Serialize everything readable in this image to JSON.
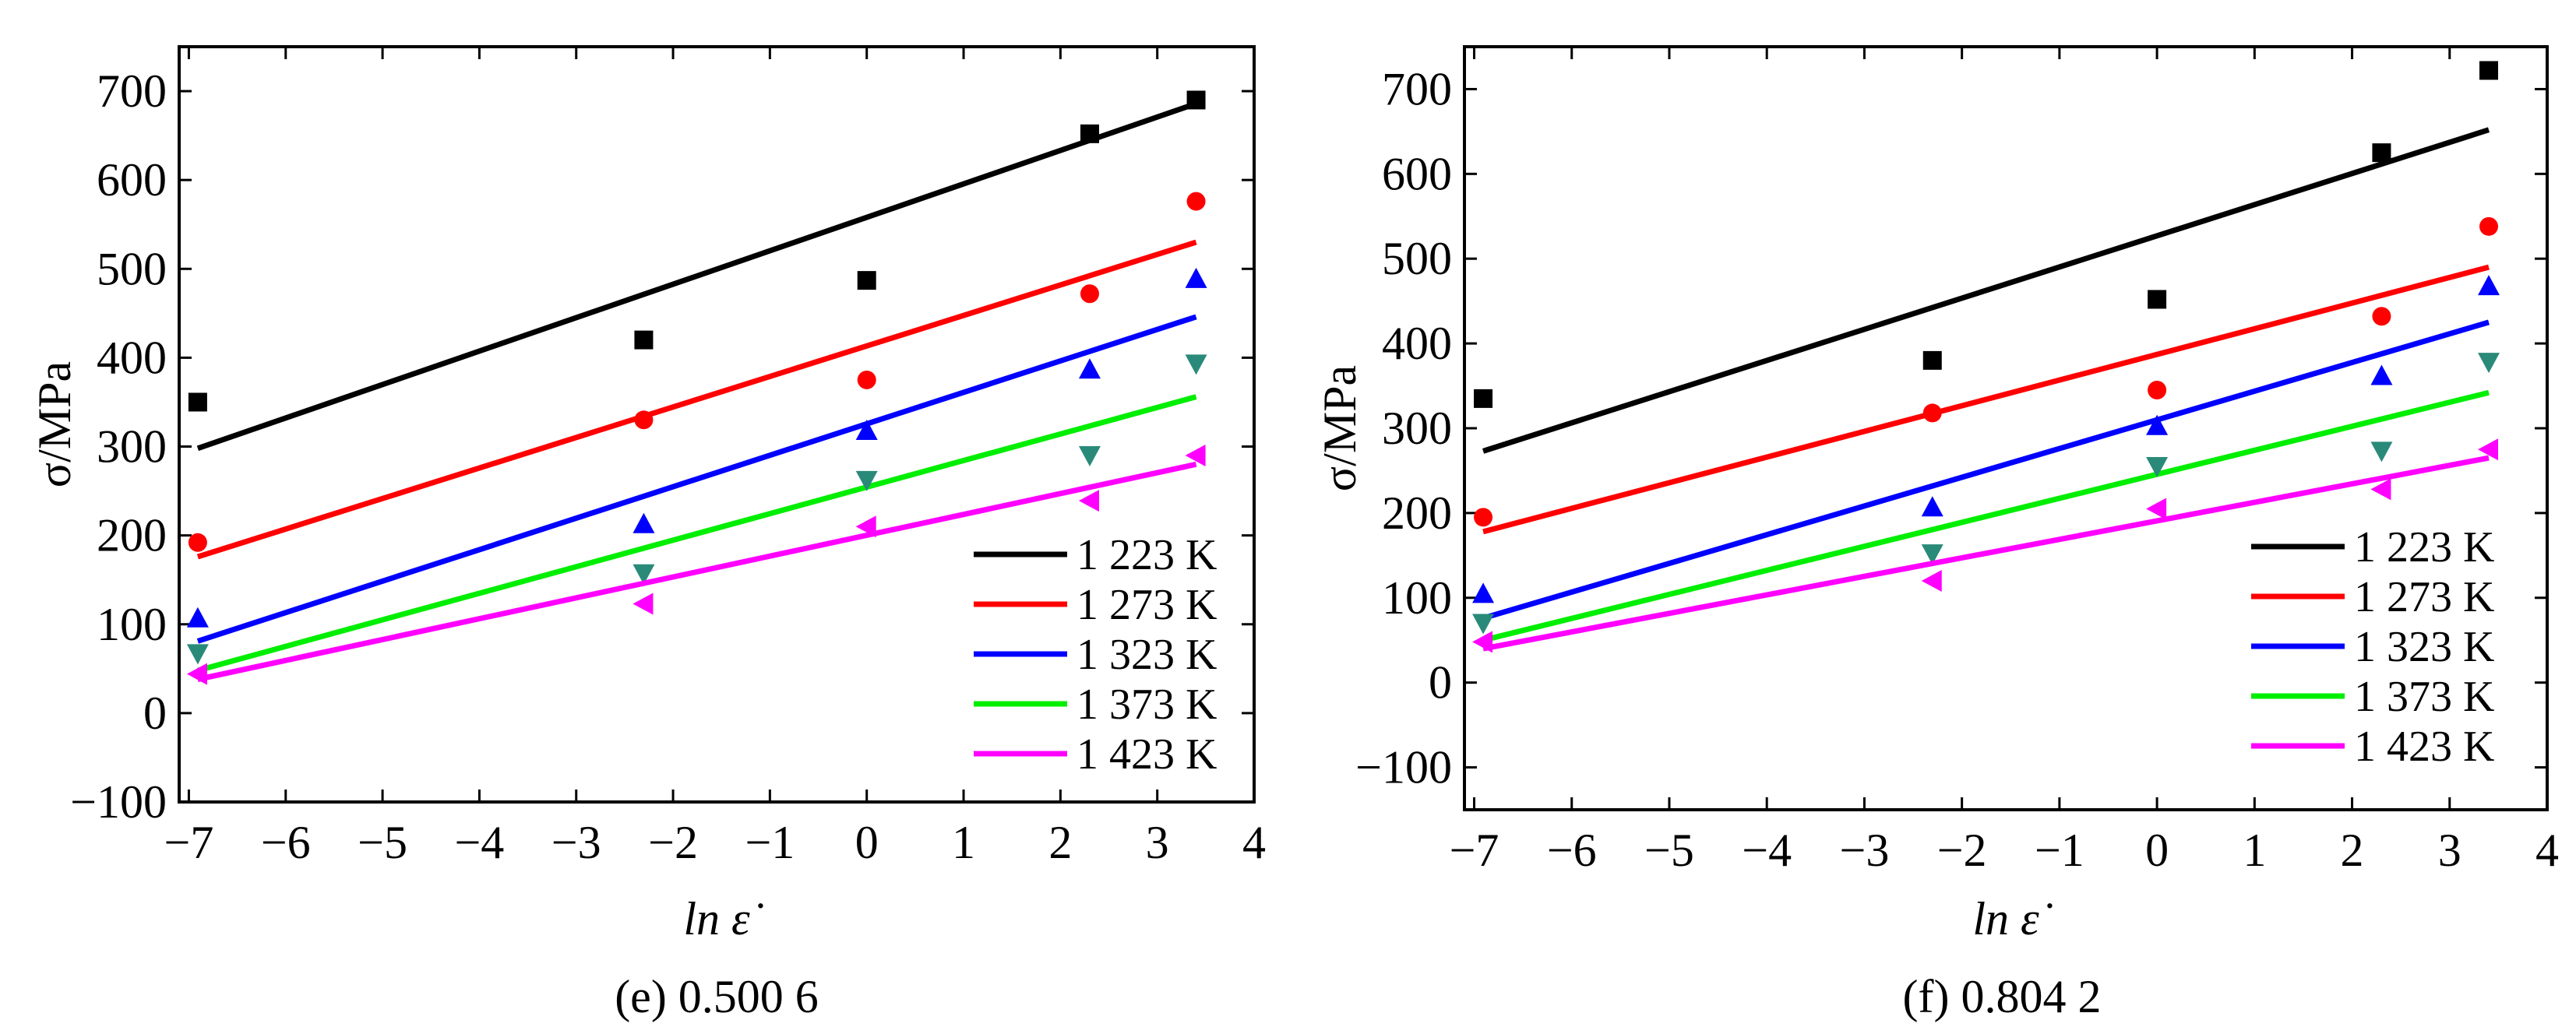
{
  "chart_data": [
    {
      "type": "scatter",
      "caption": "(e) 0.500 6",
      "xlabel": "ln ε̇",
      "ylabel": "σ/MPa",
      "xlim": [
        -7.1,
        4
      ],
      "ylim": [
        -100,
        750
      ],
      "xticks": [
        -7,
        -6,
        -5,
        -4,
        -3,
        -2,
        -1,
        0,
        1,
        2,
        3,
        4
      ],
      "yticks": [
        -100,
        0,
        100,
        200,
        300,
        400,
        500,
        600,
        700
      ],
      "legend_position": "bottom-right",
      "x": [
        -6.9078,
        -2.3026,
        0,
        2.3026,
        3.4012
      ],
      "series": [
        {
          "name": "1 223 K",
          "color": "#000000",
          "marker": "square",
          "values": [
            350,
            420,
            487,
            652,
            690
          ],
          "fit": {
            "x": [
              -6.9078,
              3.4012
            ],
            "y": [
              298,
              686
            ]
          }
        },
        {
          "name": "1 273 K",
          "color": "#ff0000",
          "marker": "circle",
          "values": [
            192,
            330,
            375,
            472,
            576
          ],
          "fit": {
            "x": [
              -6.9078,
              3.4012
            ],
            "y": [
              176,
              530
            ]
          }
        },
        {
          "name": "1 323 K",
          "color": "#0000ff",
          "marker": "triangle-up",
          "values": [
            107,
            213,
            318,
            387,
            489
          ],
          "fit": {
            "x": [
              -6.9078,
              3.4012
            ],
            "y": [
              81,
              446
            ]
          }
        },
        {
          "name": "1 373 K",
          "color": "#00ee00",
          "marker": "triangle-down",
          "values": [
            67,
            157,
            262,
            290,
            393
          ],
          "fit": {
            "x": [
              -6.9078,
              3.4012
            ],
            "y": [
              48,
              356
            ]
          }
        },
        {
          "name": "1 423 K",
          "color": "#ff00ff",
          "marker": "triangle-left",
          "values": [
            44,
            123,
            210,
            239,
            290
          ],
          "fit": {
            "x": [
              -6.9078,
              3.4012
            ],
            "y": [
              38,
              280
            ]
          }
        }
      ]
    },
    {
      "type": "scatter",
      "caption": "(f) 0.804 2",
      "xlabel": "ln ε̇",
      "ylabel": "σ/MPa",
      "xlim": [
        -7.1,
        4
      ],
      "ylim": [
        -150,
        750
      ],
      "xticks": [
        -7,
        -6,
        -5,
        -4,
        -3,
        -2,
        -1,
        0,
        1,
        2,
        3,
        4
      ],
      "yticks": [
        -100,
        0,
        100,
        200,
        300,
        400,
        500,
        600,
        700
      ],
      "legend_position": "bottom-right",
      "x": [
        -6.9078,
        -2.3026,
        0,
        2.3026,
        3.4012
      ],
      "series": [
        {
          "name": "1 223 K",
          "color": "#000000",
          "marker": "square",
          "values": [
            335,
            380,
            452,
            625,
            722
          ],
          "fit": {
            "x": [
              -6.9078,
              3.4012
            ],
            "y": [
              273,
              652
            ]
          }
        },
        {
          "name": "1 273 K",
          "color": "#ff0000",
          "marker": "circle",
          "values": [
            195,
            318,
            345,
            432,
            538
          ],
          "fit": {
            "x": [
              -6.9078,
              3.4012
            ],
            "y": [
              178,
              490
            ]
          }
        },
        {
          "name": "1 323 K",
          "color": "#0000ff",
          "marker": "triangle-up",
          "values": [
            105,
            207,
            303,
            362,
            468
          ],
          "fit": {
            "x": [
              -6.9078,
              3.4012
            ],
            "y": [
              76,
              425
            ]
          }
        },
        {
          "name": "1 373 K",
          "color": "#00ee00",
          "marker": "triangle-down",
          "values": [
            70,
            152,
            255,
            273,
            378
          ],
          "fit": {
            "x": [
              -6.9078,
              3.4012
            ],
            "y": [
              50,
              342
            ]
          }
        },
        {
          "name": "1 423 K",
          "color": "#ff00ff",
          "marker": "triangle-left",
          "values": [
            48,
            120,
            205,
            228,
            275
          ],
          "fit": {
            "x": [
              -6.9078,
              3.4012
            ],
            "y": [
              40,
              265
            ]
          }
        }
      ]
    }
  ]
}
